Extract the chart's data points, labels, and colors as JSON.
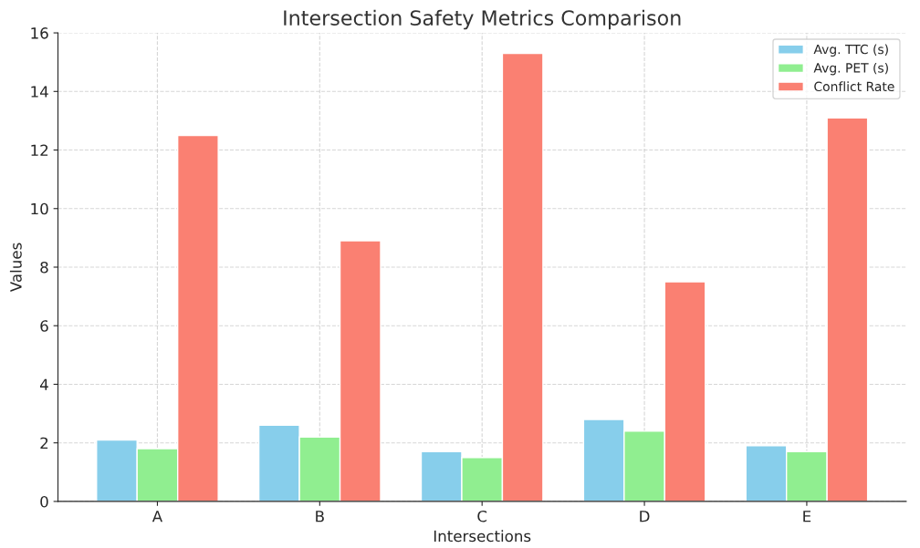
{
  "chart_data": {
    "type": "bar",
    "title": "Intersection Safety Metrics Comparison",
    "xlabel": "Intersections",
    "ylabel": "Values",
    "categories": [
      "A",
      "B",
      "C",
      "D",
      "E"
    ],
    "series": [
      {
        "name": "Avg. TTC (s)",
        "color": "#87ceeb",
        "values": [
          2.1,
          2.6,
          1.7,
          2.8,
          1.9
        ]
      },
      {
        "name": "Avg. PET (s)",
        "color": "#90ee90",
        "values": [
          1.8,
          2.2,
          1.5,
          2.4,
          1.7
        ]
      },
      {
        "name": "Conflict Rate",
        "color": "#fa8072",
        "values": [
          12.5,
          8.9,
          15.3,
          7.5,
          13.1
        ]
      }
    ],
    "ylim": [
      0,
      16
    ],
    "yticks": [
      0,
      2,
      4,
      6,
      8,
      10,
      12,
      14,
      16
    ],
    "grid": true,
    "legend": "top right"
  }
}
